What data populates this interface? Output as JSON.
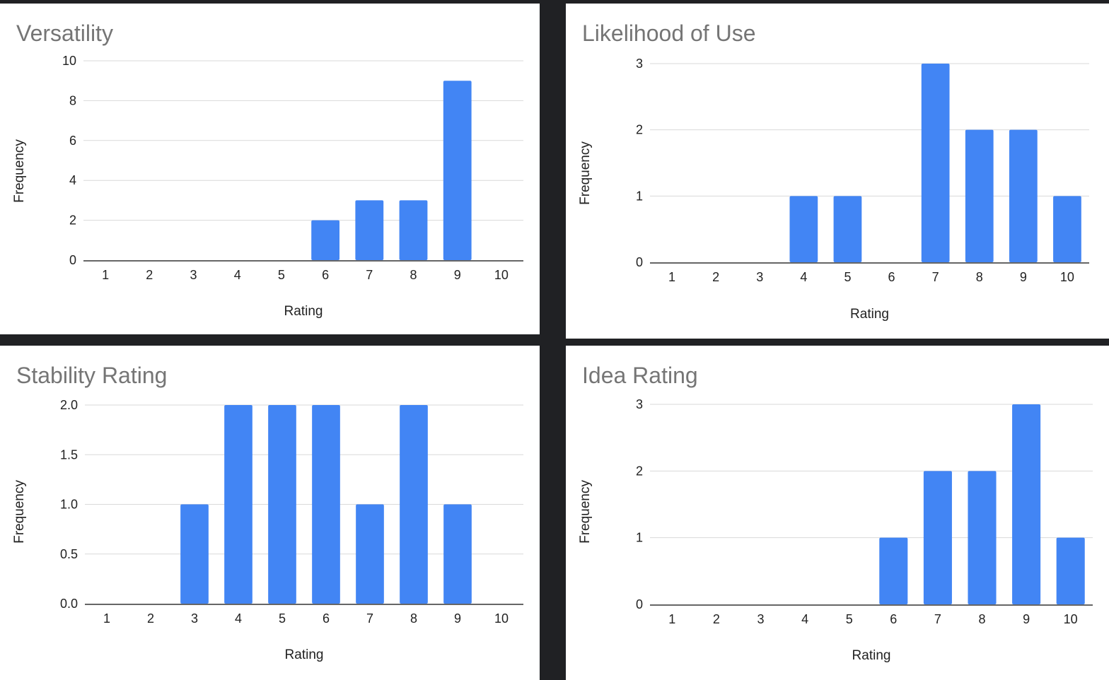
{
  "chart_data": [
    {
      "type": "bar",
      "title": "Versatility",
      "xlabel": "Rating",
      "ylabel": "Frequency",
      "categories": [
        "1",
        "2",
        "3",
        "4",
        "5",
        "6",
        "7",
        "8",
        "9",
        "10"
      ],
      "values": [
        0,
        0,
        0,
        0,
        0,
        2,
        3,
        3,
        9,
        0
      ],
      "ylim": [
        0,
        10
      ],
      "yticks": [
        "0",
        "2",
        "4",
        "6",
        "8",
        "10"
      ],
      "grid": true,
      "bar_color": "#4285f4"
    },
    {
      "type": "bar",
      "title": "Likelihood of Use",
      "xlabel": "Rating",
      "ylabel": "Frequency",
      "categories": [
        "1",
        "2",
        "3",
        "4",
        "5",
        "6",
        "7",
        "8",
        "9",
        "10"
      ],
      "values": [
        0,
        0,
        0,
        1,
        1,
        0,
        3,
        2,
        2,
        1
      ],
      "ylim": [
        0,
        3
      ],
      "yticks": [
        "0",
        "1",
        "2",
        "3"
      ],
      "grid": true,
      "bar_color": "#4285f4"
    },
    {
      "type": "bar",
      "title": "Stability Rating",
      "xlabel": "Rating",
      "ylabel": "Frequency",
      "categories": [
        "1",
        "2",
        "3",
        "4",
        "5",
        "6",
        "7",
        "8",
        "9",
        "10"
      ],
      "values": [
        0,
        0,
        1,
        2,
        2,
        2,
        1,
        2,
        1,
        0
      ],
      "ylim": [
        0,
        2
      ],
      "yticks": [
        "0.0",
        "0.5",
        "1.0",
        "1.5",
        "2.0"
      ],
      "grid": true,
      "bar_color": "#4285f4"
    },
    {
      "type": "bar",
      "title": "Idea Rating",
      "xlabel": "Rating",
      "ylabel": "Frequency",
      "categories": [
        "1",
        "2",
        "3",
        "4",
        "5",
        "6",
        "7",
        "8",
        "9",
        "10"
      ],
      "values": [
        0,
        0,
        0,
        0,
        0,
        1,
        2,
        2,
        3,
        1
      ],
      "ylim": [
        0,
        3
      ],
      "yticks": [
        "0",
        "1",
        "2",
        "3"
      ],
      "grid": true,
      "bar_color": "#4285f4"
    }
  ]
}
